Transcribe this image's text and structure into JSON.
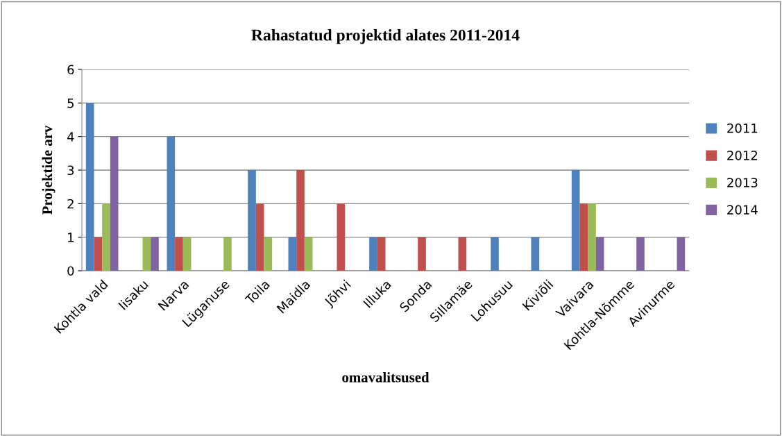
{
  "chart_data": {
    "type": "bar",
    "title": "Rahastatud projektid alates 2011-2014",
    "xlabel": "omavalitsused",
    "ylabel": "Projektide arv",
    "categories": [
      "Kohtla vald",
      "Iisaku",
      "Narva",
      "Lüganuse",
      "Toila",
      "Maidla",
      "Jõhvi",
      "Illuka",
      "Sonda",
      "Sillamäe",
      "Lohusuu",
      "Kiviõli",
      "Vaivara",
      "Kohtla-Nõmme",
      "Avinurme"
    ],
    "series": [
      {
        "name": "2011",
        "color": "#4f81bd",
        "values": [
          5,
          null,
          4,
          null,
          3,
          1,
          null,
          1,
          null,
          null,
          1,
          1,
          3,
          null,
          null
        ]
      },
      {
        "name": "2012",
        "color": "#c0504d",
        "values": [
          1,
          null,
          1,
          null,
          2,
          3,
          2,
          1,
          1,
          1,
          null,
          null,
          2,
          null,
          null
        ]
      },
      {
        "name": "2013",
        "color": "#9bbb59",
        "values": [
          2,
          1,
          1,
          1,
          1,
          1,
          null,
          null,
          null,
          null,
          null,
          null,
          2,
          null,
          null
        ]
      },
      {
        "name": "2014",
        "color": "#8064a2",
        "values": [
          4,
          1,
          null,
          null,
          null,
          null,
          null,
          null,
          null,
          null,
          null,
          null,
          1,
          1,
          1
        ]
      }
    ],
    "ylim": [
      0,
      6
    ],
    "yticks": [
      0,
      1,
      2,
      3,
      4,
      5,
      6
    ],
    "grid": "y",
    "legend": "right"
  }
}
